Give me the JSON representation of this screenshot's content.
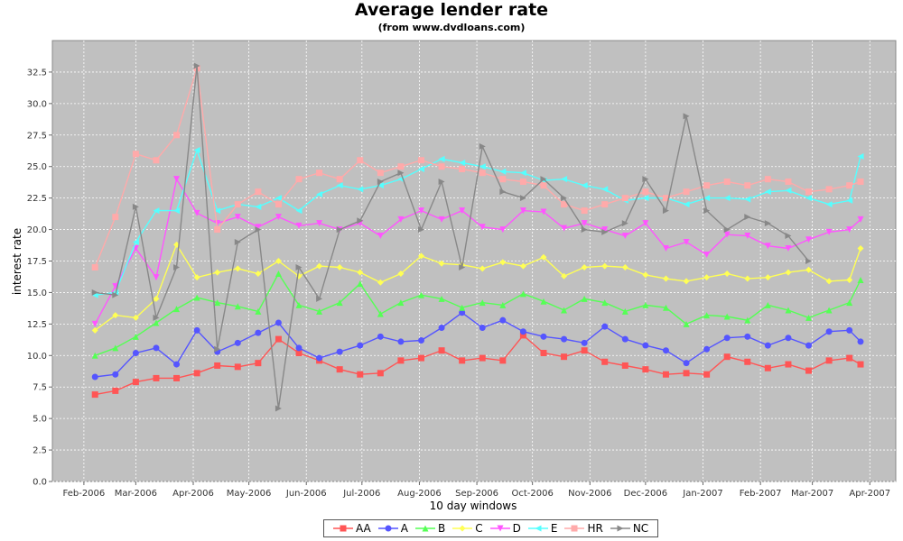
{
  "chart_data": {
    "type": "line",
    "title": "Average lender rate",
    "subtitle": "(from www.dvdloans.com)",
    "xlabel": "10 day windows",
    "ylabel": "interest rate",
    "ylim": [
      0,
      35
    ],
    "yticks": [
      "0.0",
      "2.5",
      "5.0",
      "7.5",
      "10.0",
      "12.5",
      "15.0",
      "17.5",
      "20.0",
      "22.5",
      "25.0",
      "27.5",
      "30.0",
      "32.5"
    ],
    "xticks": [
      "Feb-2006",
      "Mar-2006",
      "Apr-2006",
      "May-2006",
      "Jun-2006",
      "Jul-2006",
      "Aug-2006",
      "Sep-2006",
      "Oct-2006",
      "Nov-2006",
      "Dec-2006",
      "Jan-2007",
      "Feb-2007",
      "Mar-2007",
      "Apr-2007"
    ],
    "grid": true,
    "legend_position": "bottom",
    "x": [
      "2006-02-07",
      "2006-02-18",
      "2006-03-01",
      "2006-03-12",
      "2006-03-23",
      "2006-04-03",
      "2006-04-14",
      "2006-04-25",
      "2006-05-06",
      "2006-05-17",
      "2006-05-28",
      "2006-06-08",
      "2006-06-19",
      "2006-06-30",
      "2006-07-11",
      "2006-07-22",
      "2006-08-02",
      "2006-08-13",
      "2006-08-24",
      "2006-09-04",
      "2006-09-15",
      "2006-09-26",
      "2006-10-07",
      "2006-10-18",
      "2006-10-29",
      "2006-11-09",
      "2006-11-20",
      "2006-12-01",
      "2006-12-12",
      "2006-12-23",
      "2007-01-03",
      "2007-01-14",
      "2007-01-25",
      "2007-02-05",
      "2007-02-16",
      "2007-02-27",
      "2007-03-10",
      "2007-03-21",
      "2007-03-27"
    ],
    "series": [
      {
        "name": "AA",
        "color": "#ff5555",
        "marker": "square",
        "values": [
          6.9,
          7.2,
          7.9,
          8.2,
          8.2,
          8.6,
          9.2,
          9.1,
          9.4,
          11.3,
          10.2,
          9.6,
          8.9,
          8.5,
          8.6,
          9.6,
          9.8,
          10.4,
          9.6,
          9.8,
          9.6,
          11.6,
          10.2,
          9.9,
          10.4,
          9.5,
          9.2,
          8.9,
          8.5,
          8.6,
          8.5,
          9.9,
          9.5,
          9.0,
          9.3,
          8.8,
          9.6,
          9.8,
          9.3
        ]
      },
      {
        "name": "A",
        "color": "#5555ff",
        "marker": "circle",
        "values": [
          8.3,
          8.5,
          10.2,
          10.6,
          9.3,
          12.0,
          10.3,
          11.0,
          11.8,
          12.6,
          10.6,
          9.8,
          10.3,
          10.8,
          11.5,
          11.1,
          11.2,
          12.2,
          13.4,
          12.2,
          12.8,
          11.9,
          11.5,
          11.3,
          11.0,
          12.3,
          11.3,
          10.8,
          10.4,
          9.4,
          10.5,
          11.4,
          11.5,
          10.8,
          11.4,
          10.8,
          11.9,
          12.0,
          11.1
        ]
      },
      {
        "name": "B",
        "color": "#55ff55",
        "marker": "triangle-up",
        "values": [
          10.0,
          10.6,
          11.5,
          12.6,
          13.7,
          14.6,
          14.2,
          13.9,
          13.5,
          16.5,
          14.0,
          13.5,
          14.2,
          15.7,
          13.3,
          14.2,
          14.8,
          14.5,
          13.8,
          14.2,
          14.0,
          14.9,
          14.3,
          13.6,
          14.5,
          14.2,
          13.5,
          14.0,
          13.8,
          12.5,
          13.2,
          13.1,
          12.8,
          14.0,
          13.6,
          13.0,
          13.6,
          14.2,
          16.0
        ]
      },
      {
        "name": "C",
        "color": "#ffff55",
        "marker": "diamond",
        "values": [
          12.0,
          13.2,
          13.0,
          14.5,
          18.8,
          16.2,
          16.6,
          16.9,
          16.5,
          17.5,
          16.3,
          17.1,
          17.0,
          16.6,
          15.8,
          16.5,
          17.9,
          17.3,
          17.2,
          16.9,
          17.4,
          17.1,
          17.8,
          16.3,
          17.0,
          17.1,
          17.0,
          16.4,
          16.1,
          15.9,
          16.2,
          16.5,
          16.1,
          16.2,
          16.6,
          16.8,
          15.9,
          16.0,
          18.5
        ]
      },
      {
        "name": "D",
        "color": "#ff55ff",
        "marker": "triangle-down",
        "values": [
          12.5,
          15.5,
          18.5,
          16.2,
          24.0,
          21.3,
          20.5,
          21.0,
          20.2,
          21.0,
          20.3,
          20.5,
          20.0,
          20.5,
          19.5,
          20.8,
          21.5,
          20.8,
          21.5,
          20.2,
          20.0,
          21.5,
          21.4,
          20.1,
          20.5,
          20.0,
          19.5,
          20.5,
          18.5,
          19.0,
          18.0,
          19.6,
          19.5,
          18.7,
          18.5,
          19.2,
          19.8,
          20.0,
          20.8
        ]
      },
      {
        "name": "E",
        "color": "#55ffff",
        "marker": "triangle-left",
        "values": [
          14.8,
          15.0,
          19.0,
          21.5,
          21.5,
          26.3,
          21.5,
          22.0,
          21.8,
          22.5,
          21.5,
          22.8,
          23.5,
          23.2,
          23.5,
          24.0,
          24.8,
          25.6,
          25.3,
          25.0,
          24.6,
          24.5,
          23.9,
          24.0,
          23.5,
          23.2,
          22.3,
          22.5,
          22.5,
          22.0,
          22.5,
          22.5,
          22.4,
          23.0,
          23.1,
          22.5,
          22.0,
          22.3,
          25.8
        ]
      },
      {
        "name": "HR",
        "color": "#ffaaaa",
        "marker": "square",
        "values": [
          17.0,
          21.0,
          26.0,
          25.5,
          27.5,
          32.8,
          20.0,
          22.0,
          23.0,
          22.0,
          24.0,
          24.5,
          24.0,
          25.5,
          24.5,
          25.0,
          25.5,
          25.0,
          24.8,
          24.5,
          24.0,
          23.8,
          23.5,
          22.0,
          21.5,
          22.0,
          22.5,
          23.0,
          22.5,
          23.0,
          23.5,
          23.8,
          23.5,
          24.0,
          23.8,
          23.0,
          23.2,
          23.5,
          23.8
        ]
      },
      {
        "name": "NC",
        "color": "#888888",
        "marker": "triangle-right",
        "values": [
          15.0,
          14.8,
          21.8,
          13.0,
          17.0,
          33.0,
          10.5,
          19.0,
          20.0,
          5.8,
          17.0,
          14.5,
          20.0,
          20.7,
          23.8,
          24.5,
          20.0,
          23.8,
          17.0,
          26.6,
          23.0,
          22.5,
          24.0,
          22.5,
          20.0,
          19.8,
          20.5,
          24.0,
          21.5,
          29.0,
          21.5,
          20.0,
          21.0,
          20.5,
          19.5,
          17.5,
          null,
          null,
          null
        ]
      }
    ]
  }
}
